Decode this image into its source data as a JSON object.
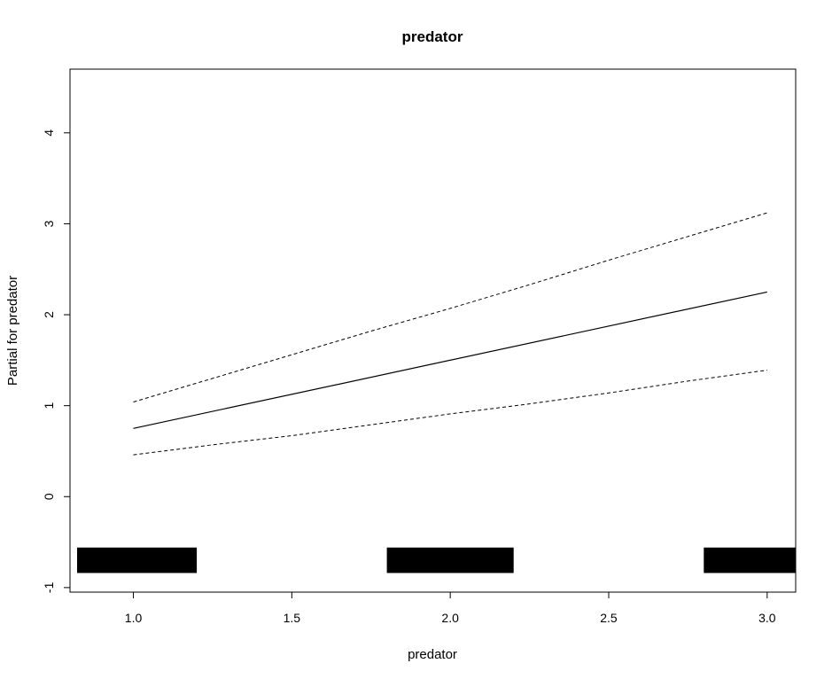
{
  "chart_data": {
    "type": "line",
    "title": "predator",
    "xlabel": "predator",
    "ylabel": "Partial for predator",
    "xlim": [
      0.8,
      3.09
    ],
    "ylim": [
      -1.05,
      4.7
    ],
    "x_ticks": [
      1.0,
      1.5,
      2.0,
      2.5,
      3.0
    ],
    "x_tick_labels": [
      "1.0",
      "1.5",
      "2.0",
      "2.5",
      "3.0"
    ],
    "y_ticks": [
      -1,
      0,
      1,
      2,
      3,
      4
    ],
    "y_tick_labels": [
      "-1",
      "0",
      "1",
      "2",
      "3",
      "4"
    ],
    "grid": false,
    "series": [
      {
        "style": "solid",
        "x": [
          1.0,
          3.0
        ],
        "y": [
          0.75,
          2.25
        ]
      },
      {
        "style": "dashed",
        "x": [
          1.0,
          1.25,
          1.5,
          1.75,
          2.0,
          2.25,
          2.5,
          2.75,
          3.0
        ],
        "y": [
          1.04,
          1.3,
          1.56,
          1.82,
          2.07,
          2.33,
          2.6,
          2.86,
          3.12
        ]
      },
      {
        "style": "dashed",
        "x": [
          1.0,
          1.25,
          1.5,
          1.75,
          2.0,
          2.25,
          2.5,
          2.75,
          3.0
        ],
        "y": [
          0.46,
          0.57,
          0.67,
          0.79,
          0.91,
          1.02,
          1.14,
          1.27,
          1.39
        ]
      }
    ],
    "rug": {
      "x": [
        1.0,
        2.0,
        3.0
      ],
      "jitter_halfwidth": 0.2,
      "y_bottom": -0.84,
      "y_top": -0.56
    }
  }
}
